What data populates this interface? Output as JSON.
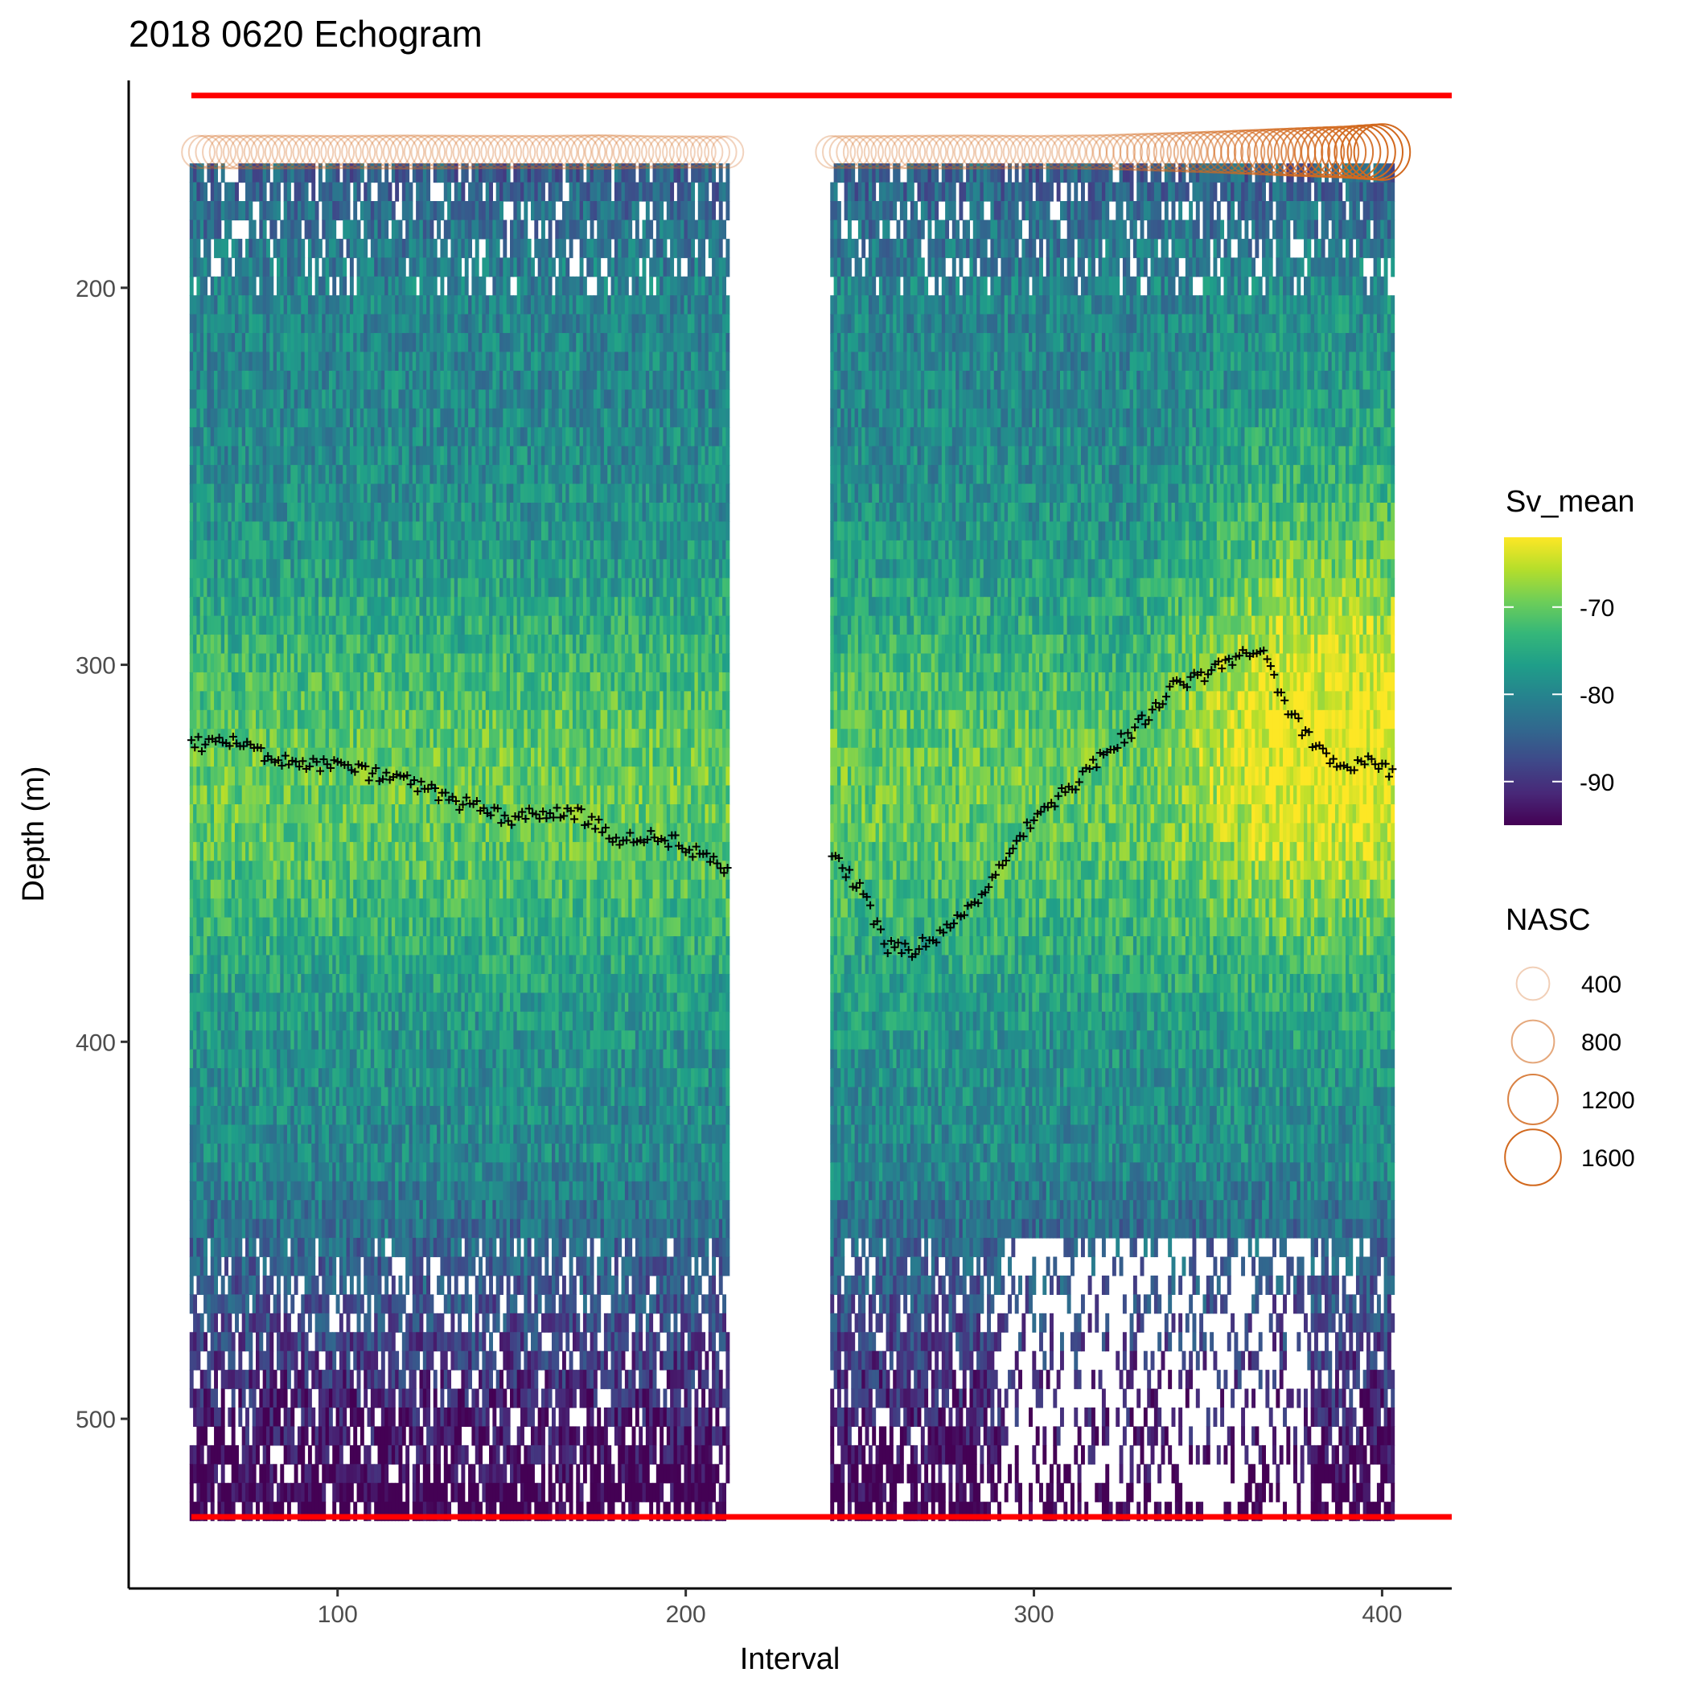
{
  "chart_data": {
    "type": "heatmap",
    "title": "2018 0620 Echogram",
    "xlabel": "Interval",
    "ylabel": "Depth (m)",
    "xlim": [
      40,
      420
    ],
    "ylim": [
      545,
      145
    ],
    "x_ticks": [
      100,
      200,
      300,
      400
    ],
    "y_ticks": [
      200,
      300,
      400,
      500
    ],
    "grid": false,
    "heatmap": {
      "segments": [
        [
          58,
          212
        ],
        [
          242,
          403
        ]
      ],
      "depth_range": [
        167,
        523
      ],
      "cell_height_m": 5,
      "value_field": "Sv_mean"
    },
    "reference_lines": {
      "color": "#ff0000",
      "depths": [
        149,
        526
      ]
    },
    "bottom_line": {
      "marker": "+",
      "color": "#000000",
      "points": [
        [
          58,
          321
        ],
        [
          70,
          321
        ],
        [
          80,
          324
        ],
        [
          90,
          326
        ],
        [
          100,
          327
        ],
        [
          110,
          329
        ],
        [
          120,
          331
        ],
        [
          130,
          335
        ],
        [
          140,
          338
        ],
        [
          150,
          341
        ],
        [
          160,
          339
        ],
        [
          170,
          340
        ],
        [
          180,
          346
        ],
        [
          190,
          345
        ],
        [
          200,
          348
        ],
        [
          212,
          354
        ],
        [
          242,
          351
        ],
        [
          250,
          359
        ],
        [
          258,
          375
        ],
        [
          265,
          376
        ],
        [
          272,
          372
        ],
        [
          280,
          366
        ],
        [
          290,
          355
        ],
        [
          300,
          340
        ],
        [
          310,
          333
        ],
        [
          320,
          324
        ],
        [
          330,
          316
        ],
        [
          340,
          306
        ],
        [
          350,
          302
        ],
        [
          355,
          299
        ],
        [
          365,
          296
        ],
        [
          372,
          310
        ],
        [
          380,
          321
        ],
        [
          390,
          328
        ],
        [
          397,
          325
        ],
        [
          403,
          329
        ]
      ]
    },
    "nasc_series": {
      "name": "NASC",
      "y_depth": 164,
      "color": "#d2691e",
      "points": [
        [
          60,
          400
        ],
        [
          80,
          420
        ],
        [
          100,
          400
        ],
        [
          120,
          430
        ],
        [
          140,
          410
        ],
        [
          160,
          400
        ],
        [
          175,
          450
        ],
        [
          190,
          380
        ],
        [
          212,
          360
        ],
        [
          242,
          380
        ],
        [
          260,
          400
        ],
        [
          280,
          430
        ],
        [
          300,
          400
        ],
        [
          320,
          450
        ],
        [
          340,
          620
        ],
        [
          355,
          780
        ],
        [
          370,
          1000
        ],
        [
          380,
          1150
        ],
        [
          390,
          1300
        ],
        [
          400,
          1600
        ]
      ]
    },
    "legend": {
      "placement": "right",
      "sv": {
        "title": "Sv_mean",
        "range": [
          -95,
          -62
        ],
        "ticks": [
          -70,
          -80,
          -90
        ],
        "colors": [
          "#440154",
          "#482878",
          "#3e4989",
          "#31688e",
          "#26828e",
          "#1f9e89",
          "#35b779",
          "#6ece58",
          "#b5de2b",
          "#fde725"
        ]
      },
      "nasc": {
        "title": "NASC",
        "items": [
          {
            "label": "400",
            "value": 400
          },
          {
            "label": "800",
            "value": 800
          },
          {
            "label": "1200",
            "value": 1200
          },
          {
            "label": "1600",
            "value": 1600
          }
        ]
      }
    }
  }
}
